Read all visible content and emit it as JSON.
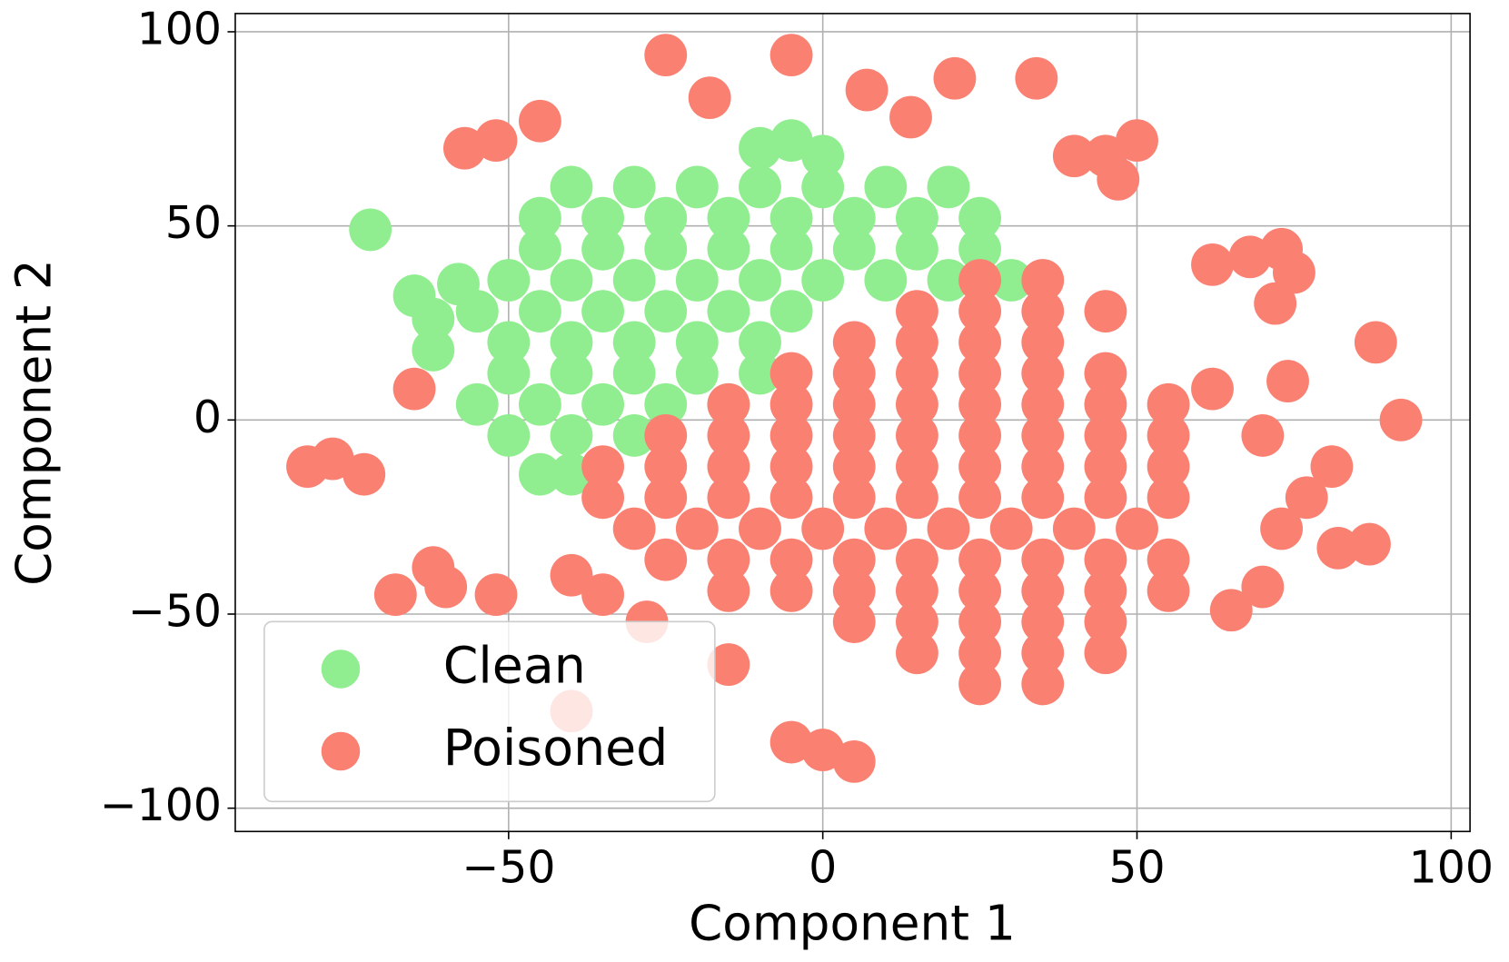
{
  "chart_data": {
    "type": "scatter",
    "x_label": "Component 1",
    "y_label": "Component 2",
    "xlim": [
      -93.5,
      103
    ],
    "ylim": [
      -106,
      104.7
    ],
    "xticks": [
      {
        "value": -50,
        "label": "−50"
      },
      0,
      50,
      100
    ],
    "yticks": [
      {
        "value": -100,
        "label": "−100"
      },
      {
        "value": -50,
        "label": "−50"
      },
      0,
      50,
      100
    ],
    "grid": true,
    "legend": "lower left",
    "series": [
      {
        "name": "Clean",
        "color": "#90ee90",
        "x": [
          -40,
          -30,
          -20,
          -10,
          0,
          10,
          20,
          -45,
          -35,
          -25,
          -15,
          -5,
          5,
          15,
          25,
          -45,
          -35,
          -25,
          -15,
          -5,
          5,
          15,
          25,
          -50,
          -40,
          -30,
          -20,
          -10,
          0,
          10,
          20,
          30,
          -55,
          -45,
          -35,
          -25,
          -15,
          -5,
          -50,
          -40,
          -30,
          -20,
          -10,
          -50,
          -40,
          -30,
          -20,
          -10,
          -55,
          -45,
          -35,
          -25,
          -15,
          -50,
          -40,
          -30,
          -45,
          -40,
          -10,
          -5,
          0,
          -65,
          -58,
          -62,
          -55,
          -62,
          -72
        ],
        "y": [
          60,
          60,
          60,
          60,
          60,
          60,
          60,
          52,
          52,
          52,
          52,
          52,
          52,
          52,
          52,
          44,
          44,
          44,
          44,
          44,
          44,
          44,
          44,
          36,
          36,
          36,
          36,
          36,
          36,
          36,
          36,
          36,
          28,
          28,
          28,
          28,
          28,
          28,
          20,
          20,
          20,
          20,
          20,
          12,
          12,
          12,
          12,
          12,
          4,
          4,
          4,
          4,
          4,
          -4,
          -4,
          -4,
          -14,
          -14,
          70,
          72,
          68,
          32,
          35,
          26,
          28,
          18,
          49
        ]
      },
      {
        "name": "Poisoned",
        "color": "#fa8072",
        "x": [
          25,
          35,
          15,
          25,
          35,
          45,
          5,
          15,
          25,
          35,
          -5,
          5,
          15,
          25,
          35,
          45,
          -15,
          -5,
          5,
          15,
          25,
          35,
          45,
          55,
          -25,
          -15,
          -5,
          5,
          15,
          25,
          35,
          45,
          55,
          -35,
          -25,
          -15,
          -5,
          5,
          15,
          25,
          35,
          45,
          55,
          -35,
          -25,
          -15,
          -5,
          5,
          15,
          25,
          35,
          45,
          55,
          -30,
          -20,
          -10,
          0,
          10,
          20,
          30,
          40,
          50,
          -25,
          -15,
          -5,
          5,
          15,
          25,
          35,
          45,
          55,
          -15,
          -5,
          5,
          15,
          25,
          35,
          45,
          55,
          5,
          15,
          25,
          35,
          45,
          15,
          25,
          35,
          45,
          25,
          35,
          -78,
          -73,
          -82,
          -68,
          -60,
          -52,
          -62,
          -40,
          -35,
          -28,
          -15,
          -40,
          -52,
          -45,
          -57,
          -25,
          -5,
          -18,
          7,
          14,
          21,
          34,
          45,
          47,
          40,
          50,
          62,
          68,
          73,
          75,
          72,
          74,
          70,
          77,
          73,
          81,
          82,
          87,
          88,
          92,
          65,
          70,
          0,
          -5,
          5,
          62,
          -65
        ],
        "y": [
          36,
          36,
          28,
          28,
          28,
          28,
          20,
          20,
          20,
          20,
          12,
          12,
          12,
          12,
          12,
          12,
          4,
          4,
          4,
          4,
          4,
          4,
          4,
          4,
          -4,
          -4,
          -4,
          -4,
          -4,
          -4,
          -4,
          -4,
          -4,
          -12,
          -12,
          -12,
          -12,
          -12,
          -12,
          -12,
          -12,
          -12,
          -12,
          -20,
          -20,
          -20,
          -20,
          -20,
          -20,
          -20,
          -20,
          -20,
          -20,
          -28,
          -28,
          -28,
          -28,
          -28,
          -28,
          -28,
          -28,
          -28,
          -36,
          -36,
          -36,
          -36,
          -36,
          -36,
          -36,
          -36,
          -36,
          -44,
          -44,
          -44,
          -44,
          -44,
          -44,
          -44,
          -44,
          -52,
          -52,
          -52,
          -52,
          -52,
          -60,
          -60,
          -60,
          -60,
          -68,
          -68,
          -10,
          -14,
          -12,
          -45,
          -43,
          -45,
          -38,
          -40,
          -45,
          -52,
          -63,
          -75,
          72,
          77,
          70,
          94,
          94,
          83,
          85,
          78,
          88,
          88,
          68,
          62,
          68,
          72,
          40,
          42,
          44,
          38,
          30,
          10,
          -4,
          -20,
          -28,
          -12,
          -33,
          -32,
          20,
          0,
          -49,
          -43,
          -85,
          -83,
          -88,
          8,
          8
        ]
      }
    ]
  }
}
